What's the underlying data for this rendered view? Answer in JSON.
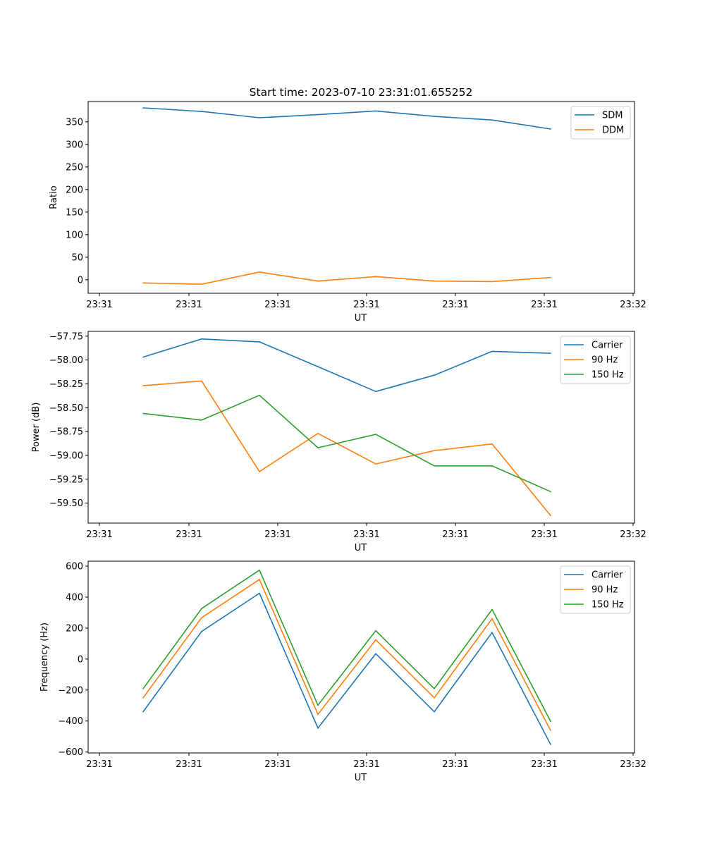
{
  "figure": {
    "title": "Start time: 2023-07-10 23:31:01.655252"
  },
  "chart_data": [
    {
      "type": "line",
      "id": "ratio",
      "xlabel": "UT",
      "ylabel": "Ratio",
      "x_tick_labels": [
        "23:31",
        "23:31",
        "23:31",
        "23:31",
        "23:31",
        "23:31",
        "23:32"
      ],
      "y_ticks": [
        0,
        50,
        100,
        150,
        200,
        250,
        300,
        350
      ],
      "y_tick_labels": [
        "0",
        "50",
        "100",
        "150",
        "200",
        "250",
        "300",
        "350"
      ],
      "ylim": [
        -30,
        395
      ],
      "legend_position": "top-right",
      "series": [
        {
          "name": "SDM",
          "color": "#1f77b4",
          "values": [
            381,
            373,
            359,
            366,
            374,
            362,
            354,
            334
          ]
        },
        {
          "name": "DDM",
          "color": "#ff7f0e",
          "values": [
            -7,
            -10,
            17,
            -3,
            7,
            -3,
            -4,
            5
          ]
        }
      ]
    },
    {
      "type": "line",
      "id": "power",
      "xlabel": "UT",
      "ylabel": "Power (dB)",
      "x_tick_labels": [
        "23:31",
        "23:31",
        "23:31",
        "23:31",
        "23:31",
        "23:31",
        "23:32"
      ],
      "y_ticks": [
        -57.75,
        -58.0,
        -58.25,
        -58.5,
        -58.75,
        -59.0,
        -59.25,
        -59.5
      ],
      "y_tick_labels": [
        "−57.75",
        "−58.00",
        "−58.25",
        "−58.50",
        "−58.75",
        "−59.00",
        "−59.25",
        "−59.50"
      ],
      "ylim": [
        -59.71,
        -57.7
      ],
      "legend_position": "top-right",
      "series": [
        {
          "name": "Carrier",
          "color": "#1f77b4",
          "values": [
            -57.97,
            -57.78,
            -57.81,
            -58.07,
            -58.33,
            -58.16,
            -57.91,
            -57.93
          ]
        },
        {
          "name": "90 Hz",
          "color": "#ff7f0e",
          "values": [
            -58.27,
            -58.22,
            -59.17,
            -58.77,
            -59.09,
            -58.95,
            -58.88,
            -59.63
          ]
        },
        {
          "name": "150 Hz",
          "color": "#2ca02c",
          "values": [
            -58.56,
            -58.63,
            -58.37,
            -58.92,
            -58.78,
            -59.11,
            -59.11,
            -59.38
          ]
        }
      ]
    },
    {
      "type": "line",
      "id": "frequency",
      "xlabel": "UT",
      "ylabel": "Frequency (Hz)",
      "x_tick_labels": [
        "23:31",
        "23:31",
        "23:31",
        "23:31",
        "23:31",
        "23:31",
        "23:32"
      ],
      "y_ticks": [
        -600,
        -400,
        -200,
        0,
        200,
        400,
        600
      ],
      "y_tick_labels": [
        "−600",
        "−400",
        "−200",
        "0",
        "200",
        "400",
        "600"
      ],
      "ylim": [
        -606,
        632
      ],
      "legend_position": "top-right",
      "series": [
        {
          "name": "Carrier",
          "color": "#1f77b4",
          "values": [
            -340,
            178,
            425,
            -446,
            35,
            -340,
            172,
            -551
          ]
        },
        {
          "name": "90 Hz",
          "color": "#ff7f0e",
          "values": [
            -250,
            267,
            514,
            -357,
            124,
            -250,
            261,
            -461
          ]
        },
        {
          "name": "150 Hz",
          "color": "#2ca02c",
          "values": [
            -191,
            326,
            574,
            -298,
            183,
            -191,
            320,
            -402
          ]
        }
      ]
    }
  ]
}
